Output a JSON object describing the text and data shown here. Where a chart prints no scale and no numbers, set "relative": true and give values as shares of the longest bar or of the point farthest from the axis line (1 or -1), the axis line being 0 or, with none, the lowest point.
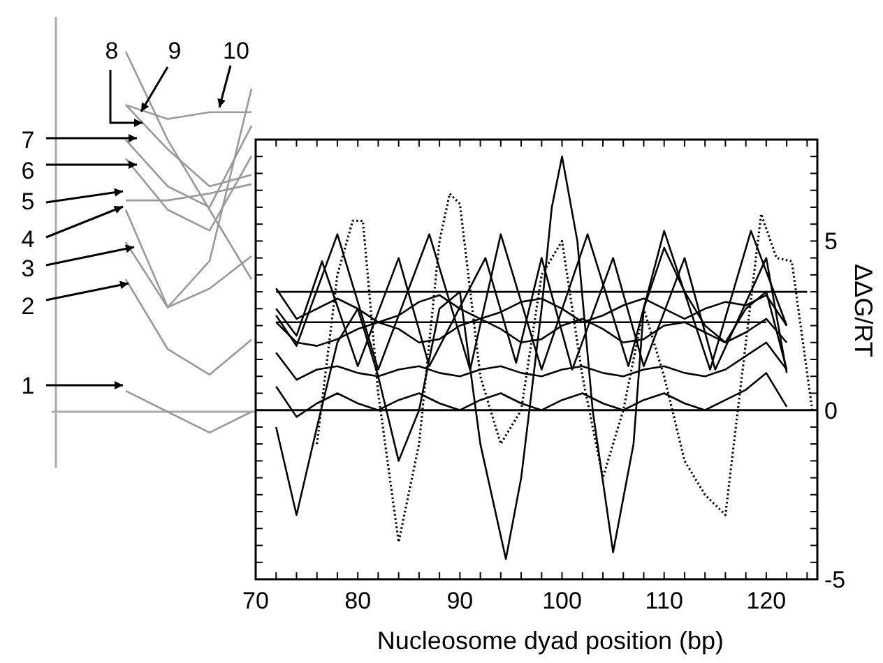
{
  "chart_data": [
    {
      "type": "line",
      "relative": true,
      "categories": [
        null,
        null,
        null,
        null
      ],
      "series": [
        {
          "name": "1",
          "color": "#999999",
          "values": [
            0.058,
            0,
            -0.058,
            0
          ]
        },
        {
          "name": "2",
          "color": "#999999",
          "values": [
            0.368,
            0.174,
            0.103,
            0.2
          ]
        },
        {
          "name": "3",
          "color": "#999999",
          "values": [
            0.471,
            0.29,
            0.342,
            0.432
          ]
        },
        {
          "name": "4",
          "color": "#999999",
          "values": [
            0.561,
            0.29,
            0.419,
            0.897
          ]
        },
        {
          "name": "5",
          "color": "#999999",
          "values": [
            0.587,
            0.587,
            0.606,
            0.632
          ]
        },
        {
          "name": "6",
          "color": "#999999",
          "values": [
            0.703,
            0.561,
            0.503,
            0.71
          ]
        },
        {
          "name": "7",
          "color": "#999999",
          "values": [
            0.755,
            0.626,
            0.568,
            0.794
          ]
        },
        {
          "name": "8",
          "color": "#999999",
          "values": [
            1,
            0.755,
            0.561,
            0.368
          ]
        },
        {
          "name": "9",
          "color": "#999999",
          "values": [
            0.852,
            0.729,
            0.626,
            0.658
          ]
        },
        {
          "name": "10",
          "color": "#999999",
          "values": [
            0.852,
            0.813,
            0.832,
            0.832
          ]
        }
      ]
    },
    {
      "type": "line",
      "xlabel": "Nucleosome dyad position (bp)",
      "ylabel": "ΔΔG/RT",
      "xlim": [
        70,
        125
      ],
      "ylim": [
        -5,
        8
      ],
      "xticks": [
        70,
        {
          "value": 72,
          "label": null
        },
        {
          "value": 74,
          "label": null
        },
        {
          "value": 76,
          "label": null
        },
        {
          "value": 78,
          "label": null
        },
        80,
        {
          "value": 82,
          "label": null
        },
        {
          "value": 84,
          "label": null
        },
        {
          "value": 86,
          "label": null
        },
        {
          "value": 88,
          "label": null
        },
        90,
        {
          "value": 92,
          "label": null
        },
        {
          "value": 94,
          "label": null
        },
        {
          "value": 96,
          "label": null
        },
        {
          "value": 98,
          "label": null
        },
        100,
        {
          "value": 102,
          "label": null
        },
        {
          "value": 104,
          "label": null
        },
        {
          "value": 106,
          "label": null
        },
        {
          "value": 108,
          "label": null
        },
        110,
        {
          "value": 112,
          "label": null
        },
        {
          "value": 114,
          "label": null
        },
        {
          "value": 116,
          "label": null
        },
        {
          "value": 118,
          "label": null
        },
        120,
        {
          "value": 122,
          "label": null
        },
        {
          "value": 124,
          "label": null
        }
      ],
      "yticks": [
        -5,
        {
          "value": -4.5,
          "label": null
        },
        {
          "value": -4,
          "label": null
        },
        {
          "value": -3.5,
          "label": null
        },
        {
          "value": -3,
          "label": null
        },
        {
          "value": -2.5,
          "label": null
        },
        {
          "value": -2,
          "label": null
        },
        {
          "value": -1.5,
          "label": null
        },
        {
          "value": -1,
          "label": null
        },
        {
          "value": -0.5,
          "label": null
        },
        0,
        {
          "value": 0.5,
          "label": null
        },
        {
          "value": 1,
          "label": null
        },
        {
          "value": 1.5,
          "label": null
        },
        {
          "value": 2,
          "label": null
        },
        {
          "value": 2.5,
          "label": null
        },
        {
          "value": 3,
          "label": null
        },
        {
          "value": 3.5,
          "label": null
        },
        {
          "value": 4,
          "label": null
        },
        {
          "value": 4.5,
          "label": null
        },
        5,
        {
          "value": 5.5,
          "label": null
        },
        {
          "value": 6,
          "label": null
        },
        {
          "value": 6.5,
          "label": null
        },
        {
          "value": 7,
          "label": null
        },
        {
          "value": 7.5,
          "label": null
        },
        {
          "value": 8,
          "label": null
        }
      ],
      "ref_lines": [
        {
          "axis": "y",
          "value": 0,
          "color": "#000000"
        }
      ],
      "series": [
        {
          "color": "#000000",
          "x": [
            72,
            74,
            76,
            78,
            80,
            82,
            84,
            86,
            88,
            90,
            92,
            94,
            96,
            98,
            100,
            102,
            104,
            106,
            108,
            110,
            112,
            114,
            116,
            118,
            120,
            122
          ],
          "values": [
            0.7,
            -0.2,
            0.2,
            0.5,
            0.2,
            0,
            0.3,
            0.5,
            0.2,
            0,
            0.3,
            0.5,
            0.2,
            0,
            0.3,
            0.5,
            0.2,
            0,
            0.3,
            0.5,
            0.2,
            0,
            0.3,
            0.6,
            1.1,
            0.1
          ]
        },
        {
          "color": "#000000",
          "x": [
            72,
            74,
            76,
            78,
            80,
            82,
            84,
            86,
            88,
            90,
            92,
            94,
            96,
            98,
            100,
            102,
            104,
            106,
            108,
            110,
            112,
            114,
            116,
            118,
            120,
            122
          ],
          "values": [
            1.7,
            0.9,
            1.2,
            1.3,
            1.1,
            1,
            1.2,
            1.3,
            1.1,
            1,
            1.2,
            1.3,
            1.1,
            1,
            1.2,
            1.3,
            1.1,
            1,
            1.2,
            1.3,
            1.1,
            1,
            1.2,
            1.6,
            2,
            1.2
          ]
        },
        {
          "color": "#000000",
          "x": [
            72,
            74,
            76,
            78,
            80,
            82,
            84,
            86,
            88,
            90,
            92,
            94,
            96,
            98,
            100,
            102,
            104,
            106,
            108,
            110,
            112,
            114,
            116,
            118,
            120,
            122
          ],
          "values": [
            2.6,
            2,
            1.9,
            2.1,
            2.4,
            2.6,
            2.4,
            2,
            2.1,
            2.5,
            2.7,
            2.4,
            2,
            2.1,
            2.5,
            2.7,
            2.4,
            2,
            2.1,
            2.5,
            2.6,
            2.3,
            2,
            2.3,
            2.7,
            2
          ]
        },
        {
          "color": "#000000",
          "x": [
            72,
            74,
            76,
            78,
            80,
            82,
            84,
            86,
            88,
            90,
            92,
            94,
            96,
            98,
            100,
            102,
            104,
            106,
            108,
            110,
            112,
            114,
            116,
            118,
            120,
            122
          ],
          "values": [
            3.6,
            2.7,
            3,
            3.3,
            3,
            2.6,
            2.8,
            3.2,
            3.4,
            3,
            2.7,
            2.9,
            3.2,
            3.3,
            3,
            2.6,
            2.8,
            3.1,
            3.3,
            3,
            2.7,
            3,
            3.2,
            3.1,
            3.4,
            2.5
          ]
        },
        {
          "color": "#000000",
          "x": [
            72,
            120
          ],
          "values": [
            2.6,
            2.6
          ]
        },
        {
          "color": "#000000",
          "x": [
            72,
            124
          ],
          "values": [
            3.5,
            3.5
          ]
        },
        {
          "color": "#000000",
          "x": [
            72,
            74,
            76.5,
            80,
            84,
            87,
            92.5,
            95.5,
            98,
            101,
            105,
            108,
            112,
            115,
            120,
            122
          ],
          "values": [
            3,
            2.2,
            4.4,
            1.3,
            4.5,
            1.3,
            4.5,
            1.4,
            4.5,
            1.2,
            4.5,
            1.3,
            4.5,
            1.2,
            4.5,
            1.1
          ]
        },
        {
          "color": "#000000",
          "x": [
            72,
            74,
            78,
            82,
            87,
            91,
            94,
            98,
            102.5,
            106.5,
            110,
            114.5,
            118.5,
            122
          ],
          "values": [
            2.8,
            1.9,
            5.2,
            1.2,
            5.2,
            1.2,
            5.2,
            1.2,
            5.2,
            1.3,
            5.3,
            1.2,
            5.3,
            2.5
          ]
        },
        {
          "color": "#000000",
          "line_style": "dotted",
          "x": [
            76,
            78,
            79.5,
            80.5,
            82,
            84,
            86,
            88,
            89,
            90,
            92,
            94,
            96,
            98,
            100,
            102,
            104,
            106,
            108,
            110,
            112,
            114,
            116,
            118,
            119.5,
            121,
            122.5,
            124.5
          ],
          "values": [
            -1,
            4,
            5.6,
            5.6,
            0.5,
            -3.9,
            -1,
            5,
            6.4,
            6.1,
            1,
            -1,
            0,
            4,
            5,
            1,
            -2,
            0,
            3,
            1,
            -1.5,
            -2.5,
            -3.1,
            2,
            5.8,
            4.5,
            4.4,
            0
          ]
        },
        {
          "color": "#000000",
          "x": [
            72,
            74,
            76,
            78,
            80,
            82,
            84,
            86,
            88,
            90,
            92,
            94.5,
            96,
            98,
            99,
            100,
            101.5,
            103,
            105,
            107,
            108,
            110,
            112,
            114,
            116,
            118,
            120,
            122
          ],
          "values": [
            -0.5,
            -3.1,
            -0.5,
            2,
            3,
            1,
            -1.5,
            0,
            3,
            3.5,
            -1,
            -4.4,
            -2,
            3,
            6,
            7.5,
            5,
            0,
            -4.2,
            -1,
            3,
            4.8,
            3.5,
            2.5,
            2,
            3,
            3.5,
            1.2
          ]
        }
      ]
    }
  ]
}
